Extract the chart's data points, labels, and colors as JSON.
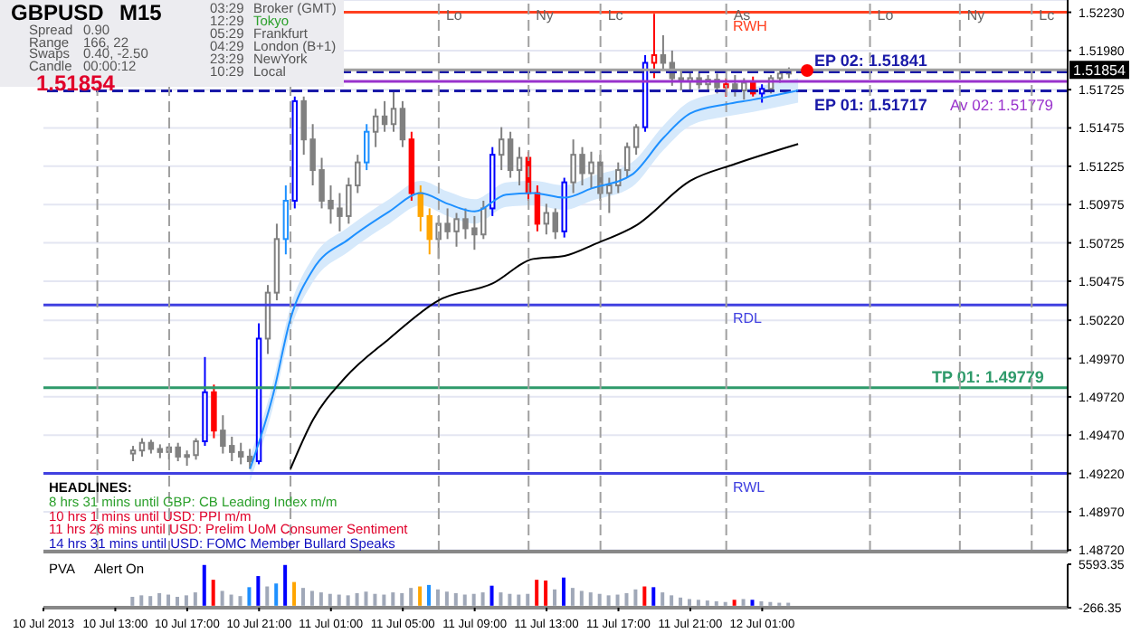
{
  "chart_data": [
    {
      "type": "candlestick",
      "x": [
        "2013-07-10T14:00",
        "2013-07-10T14:30",
        "2013-07-10T15:00",
        "2013-07-10T15:30",
        "2013-07-10T16:00",
        "2013-07-10T16:30",
        "2013-07-10T17:00",
        "2013-07-10T17:30",
        "2013-07-10T18:00",
        "2013-07-10T18:30",
        "2013-07-10T19:00",
        "2013-07-10T19:30",
        "2013-07-10T20:00",
        "2013-07-10T20:30",
        "2013-07-10T21:00",
        "2013-07-10T21:30",
        "2013-07-10T22:00",
        "2013-07-10T22:30",
        "2013-07-10T23:00",
        "2013-07-10T23:30",
        "2013-07-11T00:00",
        "2013-07-11T00:30",
        "2013-07-11T01:00",
        "2013-07-11T01:30",
        "2013-07-11T02:00",
        "2013-07-11T02:30",
        "2013-07-11T03:00",
        "2013-07-11T03:30",
        "2013-07-11T04:00",
        "2013-07-11T04:30",
        "2013-07-11T05:00",
        "2013-07-11T05:30",
        "2013-07-11T06:00",
        "2013-07-11T06:30",
        "2013-07-11T07:00",
        "2013-07-11T07:30",
        "2013-07-11T08:00",
        "2013-07-11T08:30",
        "2013-07-11T09:00",
        "2013-07-11T09:30",
        "2013-07-11T10:00",
        "2013-07-11T10:30",
        "2013-07-11T11:00",
        "2013-07-11T11:30",
        "2013-07-11T12:00",
        "2013-07-11T12:30",
        "2013-07-11T13:00",
        "2013-07-11T13:30",
        "2013-07-11T14:00",
        "2013-07-11T14:30",
        "2013-07-11T15:00",
        "2013-07-11T15:30",
        "2013-07-11T16:00",
        "2013-07-11T16:30",
        "2013-07-11T17:00",
        "2013-07-11T17:30",
        "2013-07-11T18:00",
        "2013-07-11T18:30",
        "2013-07-11T19:00",
        "2013-07-11T19:30",
        "2013-07-11T20:00",
        "2013-07-11T20:30",
        "2013-07-11T21:00",
        "2013-07-11T21:30",
        "2013-07-11T22:00",
        "2013-07-11T22:30",
        "2013-07-11T23:00",
        "2013-07-11T23:30",
        "2013-07-12T00:00",
        "2013-07-12T00:30",
        "2013-07-12T01:00",
        "2013-07-12T01:30",
        "2013-07-12T02:00",
        "2013-07-12T02:30"
      ],
      "ohlc": [
        [
          1.4935,
          1.494,
          1.493,
          1.4937
        ],
        [
          1.4937,
          1.4945,
          1.4933,
          1.4942
        ],
        [
          1.4942,
          1.4944,
          1.4935,
          1.4938
        ],
        [
          1.4938,
          1.4941,
          1.4932,
          1.4936
        ],
        [
          1.4936,
          1.494,
          1.4931,
          1.4939
        ],
        [
          1.4939,
          1.4942,
          1.493,
          1.4933
        ],
        [
          1.4933,
          1.4937,
          1.4927,
          1.4934
        ],
        [
          1.4934,
          1.4945,
          1.4931,
          1.4943
        ],
        [
          1.4943,
          1.4998,
          1.494,
          1.4975
        ],
        [
          1.4975,
          1.498,
          1.4945,
          1.495
        ],
        [
          1.495,
          1.496,
          1.4935,
          1.494
        ],
        [
          1.494,
          1.4946,
          1.493,
          1.4936
        ],
        [
          1.4936,
          1.4942,
          1.4928,
          1.4933
        ],
        [
          1.4933,
          1.4938,
          1.4925,
          1.493
        ],
        [
          1.493,
          1.502,
          1.4928,
          1.501
        ],
        [
          1.501,
          1.5045,
          1.5,
          1.504
        ],
        [
          1.504,
          1.5085,
          1.5035,
          1.5075
        ],
        [
          1.5075,
          1.511,
          1.5065,
          1.51
        ],
        [
          1.51,
          1.5168,
          1.5095,
          1.5165
        ],
        [
          1.5165,
          1.5168,
          1.513,
          1.514
        ],
        [
          1.514,
          1.515,
          1.511,
          1.512
        ],
        [
          1.512,
          1.5128,
          1.5095,
          1.51
        ],
        [
          1.51,
          1.511,
          1.5085,
          1.5095
        ],
        [
          1.5095,
          1.5105,
          1.508,
          1.509
        ],
        [
          1.509,
          1.5115,
          1.5085,
          1.511
        ],
        [
          1.511,
          1.513,
          1.5105,
          1.5125
        ],
        [
          1.5125,
          1.515,
          1.512,
          1.5145
        ],
        [
          1.5145,
          1.516,
          1.5135,
          1.5155
        ],
        [
          1.5155,
          1.5165,
          1.5145,
          1.515
        ],
        [
          1.515,
          1.5172,
          1.5145,
          1.516
        ],
        [
          1.516,
          1.5165,
          1.5135,
          1.514
        ],
        [
          1.514,
          1.5145,
          1.51,
          1.5105
        ],
        [
          1.5105,
          1.511,
          1.508,
          1.509
        ],
        [
          1.509,
          1.5095,
          1.5065,
          1.5075
        ],
        [
          1.5075,
          1.509,
          1.5062,
          1.5085
        ],
        [
          1.5085,
          1.5095,
          1.5075,
          1.508
        ],
        [
          1.508,
          1.5092,
          1.507,
          1.5088
        ],
        [
          1.5088,
          1.5095,
          1.5075,
          1.5082
        ],
        [
          1.5082,
          1.509,
          1.5068,
          1.5078
        ],
        [
          1.5078,
          1.51,
          1.5075,
          1.5095
        ],
        [
          1.5095,
          1.5135,
          1.509,
          1.513
        ],
        [
          1.513,
          1.5148,
          1.512,
          1.514
        ],
        [
          1.514,
          1.5145,
          1.5115,
          1.512
        ],
        [
          1.512,
          1.5135,
          1.511,
          1.5128
        ],
        [
          1.5128,
          1.5132,
          1.51,
          1.5105
        ],
        [
          1.5105,
          1.511,
          1.508,
          1.5085
        ],
        [
          1.5085,
          1.5098,
          1.5078,
          1.5092
        ],
        [
          1.5092,
          1.5095,
          1.5075,
          1.508
        ],
        [
          1.508,
          1.5115,
          1.5076,
          1.5112
        ],
        [
          1.5112,
          1.514,
          1.5105,
          1.513
        ],
        [
          1.513,
          1.5135,
          1.511,
          1.5118
        ],
        [
          1.5118,
          1.5132,
          1.5108,
          1.5125
        ],
        [
          1.5125,
          1.513,
          1.51,
          1.5105
        ],
        [
          1.5105,
          1.5115,
          1.5092,
          1.511
        ],
        [
          1.511,
          1.5125,
          1.5105,
          1.512
        ],
        [
          1.512,
          1.5138,
          1.5115,
          1.5135
        ],
        [
          1.5135,
          1.515,
          1.513,
          1.5148
        ],
        [
          1.5148,
          1.5195,
          1.5145,
          1.519
        ],
        [
          1.519,
          1.5222,
          1.518,
          1.5195
        ],
        [
          1.5195,
          1.5208,
          1.5185,
          1.519
        ],
        [
          1.519,
          1.5198,
          1.5175,
          1.518
        ],
        [
          1.518,
          1.5186,
          1.5172,
          1.5178
        ],
        [
          1.5178,
          1.5185,
          1.5172,
          1.518
        ],
        [
          1.518,
          1.5184,
          1.5173,
          1.5176
        ],
        [
          1.5176,
          1.5182,
          1.5172,
          1.5179
        ],
        [
          1.5179,
          1.5183,
          1.517,
          1.5174
        ],
        [
          1.5174,
          1.518,
          1.5168,
          1.5176
        ],
        [
          1.5176,
          1.5182,
          1.5168,
          1.5172
        ],
        [
          1.5172,
          1.518,
          1.5166,
          1.5177
        ],
        [
          1.5177,
          1.5181,
          1.5168,
          1.517
        ],
        [
          1.517,
          1.5176,
          1.5164,
          1.5173
        ],
        [
          1.5173,
          1.5182,
          1.517,
          1.518
        ],
        [
          1.518,
          1.5186,
          1.5177,
          1.5183
        ],
        [
          1.5183,
          1.5187,
          1.518,
          1.5185
        ]
      ],
      "colors": [
        "#808080",
        "#808080",
        "#808080",
        "#808080",
        "#808080",
        "#808080",
        "#808080",
        "#808080",
        "#0000ff",
        "#ff0000",
        "#808080",
        "#808080",
        "#808080",
        "#808080",
        "#0000ff",
        "#808080",
        "#808080",
        "#1e90ff",
        "#0000ff",
        "#808080",
        "#808080",
        "#808080",
        "#808080",
        "#808080",
        "#808080",
        "#808080",
        "#1e90ff",
        "#808080",
        "#808080",
        "#808080",
        "#808080",
        "#ff0000",
        "#ffa500",
        "#ffa500",
        "#808080",
        "#808080",
        "#808080",
        "#808080",
        "#808080",
        "#808080",
        "#0000ff",
        "#808080",
        "#808080",
        "#808080",
        "#ff0000",
        "#ff0000",
        "#808080",
        "#808080",
        "#0000ff",
        "#808080",
        "#808080",
        "#808080",
        "#808080",
        "#808080",
        "#808080",
        "#808080",
        "#808080",
        "#0000ff",
        "#ff0000",
        "#808080",
        "#808080",
        "#808080",
        "#808080",
        "#808080",
        "#808080",
        "#808080",
        "#ff0000",
        "#808080",
        "#808080",
        "#ff0000",
        "#0000ff",
        "#808080",
        "#808080",
        "#808080"
      ],
      "series": [
        {
          "type": "line",
          "color": "#1e90ff",
          "x": [
            "2013-07-10T20:30",
            "2013-07-10T21:45",
            "2013-07-10T22:45",
            "2013-07-11T00:00",
            "2013-07-11T02:00",
            "2013-07-11T04:15",
            "2013-07-11T06:00",
            "2013-07-11T07:30",
            "2013-07-11T09:00",
            "2013-07-11T10:45",
            "2013-07-11T12:15",
            "2013-07-11T14:00",
            "2013-07-11T15:30",
            "2013-07-11T17:45",
            "2013-07-11T19:30",
            "2013-07-11T21:00",
            "2013-07-11T23:00",
            "2013-07-12T00:30",
            "2013-07-12T03:00"
          ],
          "values": [
            1.4925,
            1.4972,
            1.5023,
            1.5055,
            1.5075,
            1.5093,
            1.5105,
            1.5098,
            1.5093,
            1.5104,
            1.5105,
            1.5102,
            1.5108,
            1.5117,
            1.5141,
            1.5157,
            1.5163,
            1.5166,
            1.5172
          ],
          "lower": [
            1.4917,
            1.4964,
            1.5015,
            1.5047,
            1.5067,
            1.5085,
            1.5097,
            1.509,
            1.5085,
            1.5096,
            1.5097,
            1.5094,
            1.51,
            1.5109,
            1.5133,
            1.5149,
            1.5155,
            1.5158,
            1.5164
          ],
          "upper": [
            1.4933,
            1.498,
            1.5031,
            1.5063,
            1.5083,
            1.5101,
            1.5113,
            1.5106,
            1.5101,
            1.5112,
            1.5113,
            1.511,
            1.5116,
            1.5125,
            1.5149,
            1.5165,
            1.5171,
            1.5174,
            1.518
          ]
        },
        {
          "type": "line",
          "color": "#000000",
          "x": [
            "2013-07-10T22:45",
            "2013-07-11T00:00",
            "2013-07-11T01:45",
            "2013-07-11T04:15",
            "2013-07-11T07:00",
            "2013-07-11T10:00",
            "2013-07-11T12:15",
            "2013-07-11T14:00",
            "2013-07-11T15:45",
            "2013-07-11T18:00",
            "2013-07-11T21:00",
            "2013-07-11T23:30",
            "2013-07-12T03:00"
          ],
          "values": [
            1.4925,
            1.4957,
            1.4984,
            1.501,
            1.5035,
            1.5046,
            1.5062,
            1.5064,
            1.5072,
            1.5084,
            1.5113,
            1.5124,
            1.5137
          ]
        },
        {
          "type": "scatter",
          "color": "#ff0000",
          "x": [
            "2013-07-12T03:30"
          ],
          "values": [
            1.5185
          ]
        }
      ],
      "xlim": [
        "2013-07-10T09:00",
        "2013-07-12T18:00"
      ],
      "ylim": [
        1.4871,
        1.5231
      ],
      "yticks": [
        {
          "value": 1.5223,
          "label": "1.52230"
        },
        {
          "value": 1.5198,
          "label": "1.51980"
        },
        {
          "value": 1.51725,
          "label": "1.51725"
        },
        {
          "value": 1.51475,
          "label": "1.51475"
        },
        {
          "value": 1.51225,
          "label": "1.51225"
        },
        {
          "value": 1.50975,
          "label": "1.50975"
        },
        {
          "value": 1.50725,
          "label": "1.50725"
        },
        {
          "value": 1.50475,
          "label": "1.50475"
        },
        {
          "value": 1.5022,
          "label": "1.50220"
        },
        {
          "value": 1.4997,
          "label": "1.49970"
        },
        {
          "value": 1.4972,
          "label": "1.49720"
        },
        {
          "value": 1.4947,
          "label": "1.49470"
        },
        {
          "value": 1.4922,
          "label": "1.49220"
        },
        {
          "value": 1.4897,
          "label": "1.48970"
        },
        {
          "value": 1.4872,
          "label": "1.48720"
        }
      ],
      "tick_labels": "y",
      "grid": "y",
      "ref_lines": [
        {
          "axis": "y",
          "value": 1.5223,
          "label": "RWH",
          "color": "#ff4020"
        },
        {
          "axis": "y",
          "value": 1.51841,
          "label": "EP 02: 1.51841",
          "color": "#1a1aa8",
          "line_style": "dashed"
        },
        {
          "axis": "y",
          "value": 1.51779,
          "label": "Av 02: 1.51779",
          "color": "#9932cc"
        },
        {
          "axis": "y",
          "value": 1.51717,
          "label": "EP 01: 1.51717",
          "color": "#1a1aa8",
          "line_style": "dashed"
        },
        {
          "axis": "y",
          "value": 1.5032,
          "label": "RDL",
          "color": "#4040e0"
        },
        {
          "axis": "y",
          "value": 1.49779,
          "label": "TP 01: 1.49779",
          "color": "#2e9a6a"
        },
        {
          "axis": "y",
          "value": 1.4922,
          "label": "RWL",
          "color": "#4040e0"
        },
        {
          "axis": "y",
          "value": 1.51854,
          "label": "1.51854",
          "color": "#a0a0a0"
        },
        {
          "axis": "x",
          "value": "2013-07-10T12:00",
          "color": "#a0a0a0",
          "line_style": "dashed"
        },
        {
          "axis": "x",
          "value": "2013-07-10T16:00",
          "color": "#a0a0a0",
          "line_style": "dashed"
        },
        {
          "axis": "x",
          "value": "2013-07-10T22:45",
          "color": "#a0a0a0",
          "line_style": "dashed"
        },
        {
          "axis": "x",
          "value": "2013-07-11T07:00",
          "label": "Lo",
          "color": "#a0a0a0",
          "line_style": "dashed"
        },
        {
          "axis": "x",
          "value": "2013-07-11T12:00",
          "label": "Ny",
          "color": "#a0a0a0",
          "line_style": "dashed"
        },
        {
          "axis": "x",
          "value": "2013-07-11T16:00",
          "label": "Lc",
          "color": "#a0a0a0",
          "line_style": "dashed"
        },
        {
          "axis": "x",
          "value": "2013-07-11T23:00",
          "label": "As",
          "color": "#a0a0a0",
          "line_style": "dashed"
        },
        {
          "axis": "x",
          "value": "2013-07-12T07:00",
          "label": "Lo",
          "color": "#a0a0a0",
          "line_style": "dashed"
        },
        {
          "axis": "x",
          "value": "2013-07-12T12:00",
          "label": "Ny",
          "color": "#a0a0a0",
          "line_style": "dashed"
        },
        {
          "axis": "x",
          "value": "2013-07-12T16:00",
          "label": "Lc",
          "color": "#a0a0a0",
          "line_style": "dashed"
        }
      ],
      "annotations": [
        "GBPUSD",
        "M15",
        "Spread",
        "0.90",
        "Range",
        "166, 22",
        "Swaps",
        "0.40, -2.50",
        "Candle",
        "00:00:12",
        "1.51854",
        "03:29",
        "Broker (GMT)",
        "12:29",
        "Tokyo",
        "05:29",
        "Frankfurt",
        "04:29",
        "London (B+1)",
        "23:29",
        "NewYork",
        "10:29",
        "Local",
        "HEADLINES:",
        "8 hrs 31 mins until GBP: CB Leading Index m/m",
        "10 hrs 1 mins until USD: PPI m/m",
        "11 hrs 26 mins until USD: Prelim UoM Consumer Sentiment",
        "14 hrs 31 mins until USD: FOMC Member Bullard Speaks"
      ]
    },
    {
      "type": "bar",
      "x": [
        "2013-07-10T14:00",
        "2013-07-10T14:30",
        "2013-07-10T15:00",
        "2013-07-10T15:30",
        "2013-07-10T16:00",
        "2013-07-10T16:30",
        "2013-07-10T17:00",
        "2013-07-10T17:30",
        "2013-07-10T18:00",
        "2013-07-10T18:30",
        "2013-07-10T19:00",
        "2013-07-10T19:30",
        "2013-07-10T20:00",
        "2013-07-10T20:30",
        "2013-07-10T21:00",
        "2013-07-10T21:30",
        "2013-07-10T22:00",
        "2013-07-10T22:30",
        "2013-07-10T23:00",
        "2013-07-10T23:30",
        "2013-07-11T00:00",
        "2013-07-11T00:30",
        "2013-07-11T01:00",
        "2013-07-11T01:30",
        "2013-07-11T02:00",
        "2013-07-11T02:30",
        "2013-07-11T03:00",
        "2013-07-11T03:30",
        "2013-07-11T04:00",
        "2013-07-11T04:30",
        "2013-07-11T05:00",
        "2013-07-11T05:30",
        "2013-07-11T06:00",
        "2013-07-11T06:30",
        "2013-07-11T07:00",
        "2013-07-11T07:30",
        "2013-07-11T08:00",
        "2013-07-11T08:30",
        "2013-07-11T09:00",
        "2013-07-11T09:30",
        "2013-07-11T10:00",
        "2013-07-11T10:30",
        "2013-07-11T11:00",
        "2013-07-11T11:30",
        "2013-07-11T12:00",
        "2013-07-11T12:30",
        "2013-07-11T13:00",
        "2013-07-11T13:30",
        "2013-07-11T14:00",
        "2013-07-11T14:30",
        "2013-07-11T15:00",
        "2013-07-11T15:30",
        "2013-07-11T16:00",
        "2013-07-11T16:30",
        "2013-07-11T17:00",
        "2013-07-11T17:30",
        "2013-07-11T18:00",
        "2013-07-11T18:30",
        "2013-07-11T19:00",
        "2013-07-11T19:30",
        "2013-07-11T20:00",
        "2013-07-11T20:30",
        "2013-07-11T21:00",
        "2013-07-11T21:30",
        "2013-07-11T22:00",
        "2013-07-11T22:30",
        "2013-07-11T23:00",
        "2013-07-11T23:30",
        "2013-07-12T00:00",
        "2013-07-12T00:30",
        "2013-07-12T01:00",
        "2013-07-12T01:30",
        "2013-07-12T02:00",
        "2013-07-12T02:30"
      ],
      "values": [
        1200,
        1400,
        1300,
        1700,
        1500,
        1200,
        1400,
        1800,
        5500,
        3500,
        2000,
        1500,
        1300,
        2500,
        4000,
        2600,
        3000,
        5500,
        3200,
        2400,
        2000,
        1800,
        1600,
        1500,
        1400,
        1700,
        1900,
        1600,
        1500,
        1800,
        1700,
        2400,
        2600,
        2800,
        2200,
        1900,
        1700,
        1500,
        1600,
        1800,
        2700,
        1800,
        1600,
        1500,
        1600,
        3500,
        3400,
        2200,
        3800,
        2400,
        2000,
        1800,
        1600,
        1400,
        1500,
        1700,
        2200,
        2600,
        2500,
        1800,
        1400,
        1100,
        900,
        800,
        700,
        600,
        500,
        800,
        900,
        800,
        600,
        500,
        400,
        400
      ],
      "colors": [
        "#a0a8b8",
        "#a0a8b8",
        "#a0a8b8",
        "#a0a8b8",
        "#a0a8b8",
        "#a0a8b8",
        "#a0a8b8",
        "#a0a8b8",
        "#0000ff",
        "#ff0000",
        "#a0a8b8",
        "#a0a8b8",
        "#a0a8b8",
        "#1e90ff",
        "#0000ff",
        "#a0a8b8",
        "#1e90ff",
        "#0000ff",
        "#ffa500",
        "#a0a8b8",
        "#a0a8b8",
        "#a0a8b8",
        "#a0a8b8",
        "#a0a8b8",
        "#a0a8b8",
        "#a0a8b8",
        "#a0a8b8",
        "#a0a8b8",
        "#a0a8b8",
        "#a0a8b8",
        "#a0a8b8",
        "#a0a8b8",
        "#ffa500",
        "#1e90ff",
        "#a0a8b8",
        "#a0a8b8",
        "#a0a8b8",
        "#a0a8b8",
        "#a0a8b8",
        "#a0a8b8",
        "#0000ff",
        "#a0a8b8",
        "#a0a8b8",
        "#a0a8b8",
        "#a0a8b8",
        "#ff0000",
        "#ff0000",
        "#a0a8b8",
        "#0000ff",
        "#a0a8b8",
        "#a0a8b8",
        "#a0a8b8",
        "#a0a8b8",
        "#a0a8b8",
        "#a0a8b8",
        "#a0a8b8",
        "#a0a8b8",
        "#ff0000",
        "#0000ff",
        "#a0a8b8",
        "#a0a8b8",
        "#a0a8b8",
        "#a0a8b8",
        "#a0a8b8",
        "#a0a8b8",
        "#a0a8b8",
        "#a0a8b8",
        "#ff0000",
        "#a0a8b8",
        "#0000ff",
        "#a0a8b8",
        "#a0a8b8",
        "#a0a8b8",
        "#a0a8b8"
      ],
      "xlim": [
        "2013-07-10T09:00",
        "2013-07-12T18:00"
      ],
      "xticks": [
        {
          "value": "2013-07-10T09:00",
          "label": "10 Jul 2013"
        },
        {
          "value": "2013-07-10T13:00",
          "label": "10 Jul 13:00"
        },
        {
          "value": "2013-07-10T17:00",
          "label": "10 Jul 17:00"
        },
        {
          "value": "2013-07-10T21:00",
          "label": "10 Jul 21:00"
        },
        {
          "value": "2013-07-11T01:00",
          "label": "11 Jul 01:00"
        },
        {
          "value": "2013-07-11T05:00",
          "label": "11 Jul 05:00"
        },
        {
          "value": "2013-07-11T09:00",
          "label": "11 Jul 09:00"
        },
        {
          "value": "2013-07-11T13:00",
          "label": "11 Jul 13:00"
        },
        {
          "value": "2013-07-11T17:00",
          "label": "11 Jul 17:00"
        },
        {
          "value": "2013-07-11T21:00",
          "label": "11 Jul 21:00"
        },
        {
          "value": "2013-07-12T01:00",
          "label": "12 Jul 01:00"
        }
      ],
      "ylim": [
        -266.35,
        5593.35
      ],
      "yticks": [
        {
          "value": 5593.35,
          "label": "5593.35"
        },
        {
          "value": -266.35,
          "label": "-266.35"
        }
      ],
      "annotations": [
        "PVA",
        "Alert On"
      ]
    }
  ]
}
